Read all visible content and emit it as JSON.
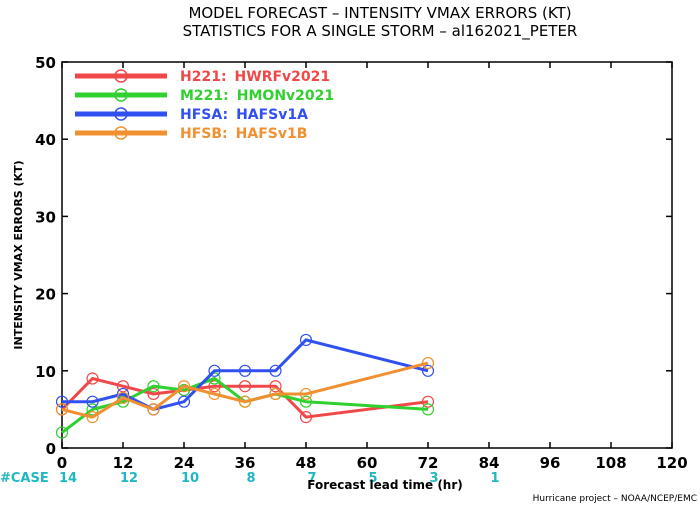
{
  "title_line1": "MODEL FORECAST – INTENSITY VMAX ERRORS (KT)",
  "title_line2": "STATISTICS FOR A SINGLE STORM – al162021_PETER",
  "credit": "Hurricane project – NOAA/NCEP/EMC",
  "case_label": "#CASE",
  "chart_data": {
    "type": "line",
    "xlabel": "Forecast lead time (hr)",
    "ylabel": "INTENSITY VMAX ERRORS (KT)",
    "xlim": [
      0,
      120
    ],
    "ylim": [
      0,
      50
    ],
    "x_ticks": [
      0,
      12,
      24,
      36,
      48,
      60,
      72,
      84,
      96,
      108,
      120
    ],
    "y_ticks": [
      0,
      10,
      20,
      30,
      40,
      50
    ],
    "legend_position": "top-left",
    "case_counts": [
      {
        "x": 0,
        "n": "14"
      },
      {
        "x": 12,
        "n": "12"
      },
      {
        "x": 24,
        "n": "10"
      },
      {
        "x": 36,
        "n": "8"
      },
      {
        "x": 48,
        "n": "7"
      },
      {
        "x": 60,
        "n": "5"
      },
      {
        "x": 72,
        "n": "3"
      },
      {
        "x": 84,
        "n": "1"
      }
    ],
    "series": [
      {
        "name": "H221:",
        "desc": "HWRFv2021",
        "color": "#f04848",
        "x": [
          0,
          6,
          12,
          18,
          24,
          30,
          36,
          42,
          48,
          72
        ],
        "y": [
          5,
          9,
          8,
          7,
          7.5,
          8,
          8,
          8,
          4,
          6
        ]
      },
      {
        "name": "M221:",
        "desc": "HMONv2021",
        "color": "#30d030",
        "x": [
          0,
          6,
          12,
          18,
          24,
          30,
          36,
          42,
          48,
          72
        ],
        "y": [
          2,
          5,
          6,
          8,
          7.5,
          9,
          6,
          7,
          6,
          5
        ]
      },
      {
        "name": "HFSA:",
        "desc": "HAFSv1A",
        "color": "#3050f0",
        "x": [
          0,
          6,
          12,
          18,
          24,
          30,
          36,
          42,
          48,
          72
        ],
        "y": [
          6,
          6,
          7,
          5,
          6,
          10,
          10,
          10,
          14,
          10
        ]
      },
      {
        "name": "HFSB:",
        "desc": "HAFSv1B",
        "color": "#f09030",
        "x": [
          0,
          6,
          12,
          18,
          24,
          30,
          36,
          42,
          48,
          72
        ],
        "y": [
          5,
          4,
          6.5,
          5,
          8,
          7,
          6,
          7,
          7,
          11
        ]
      }
    ]
  }
}
